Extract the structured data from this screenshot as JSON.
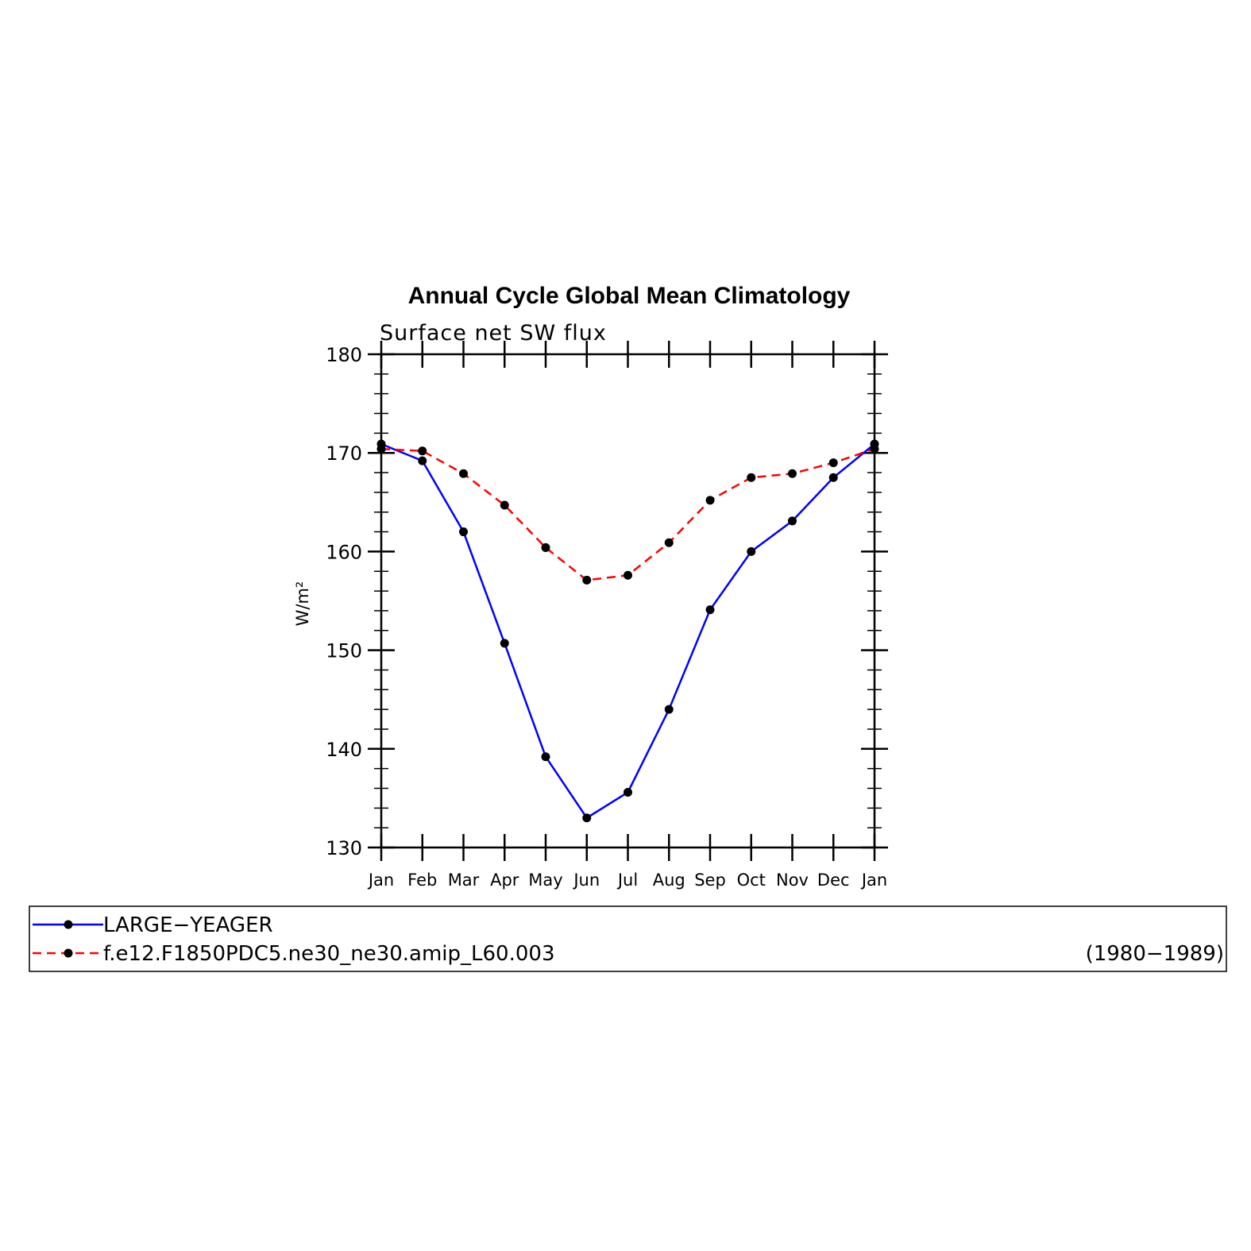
{
  "chart_data": {
    "type": "line",
    "title": "Annual Cycle Global Mean Climatology",
    "subtitle": "Surface net SW flux",
    "xlabel": "",
    "ylabel": "W/m²",
    "ylim": [
      130,
      180
    ],
    "yticks": [
      "130",
      "140",
      "150",
      "160",
      "170",
      "180"
    ],
    "categories": [
      "Jan",
      "Feb",
      "Mar",
      "Apr",
      "May",
      "Jun",
      "Jul",
      "Aug",
      "Sep",
      "Oct",
      "Nov",
      "Dec",
      "Jan"
    ],
    "series": [
      {
        "name": "LARGE−YEAGER",
        "color": "#0000ff",
        "dash": "solid",
        "values": [
          170.9,
          169.2,
          162.0,
          150.7,
          139.2,
          133.0,
          135.6,
          144.0,
          154.1,
          160.0,
          163.1,
          167.5,
          170.9
        ]
      },
      {
        "name": "f.e12.F1850PDC5.ne30_ne30.amip_L60.003",
        "color": "#ff0000",
        "dash": "dashed",
        "values": [
          170.4,
          170.2,
          167.9,
          164.7,
          160.4,
          157.1,
          157.6,
          160.9,
          165.2,
          167.5,
          167.9,
          169.0,
          170.4
        ]
      }
    ],
    "legend": {
      "placement": "bottom",
      "entries": [
        "LARGE−YEAGER",
        "f.e12.F1850PDC5.ne30_ne30.amip_L60.003"
      ],
      "period": "(1980−1989)"
    }
  }
}
